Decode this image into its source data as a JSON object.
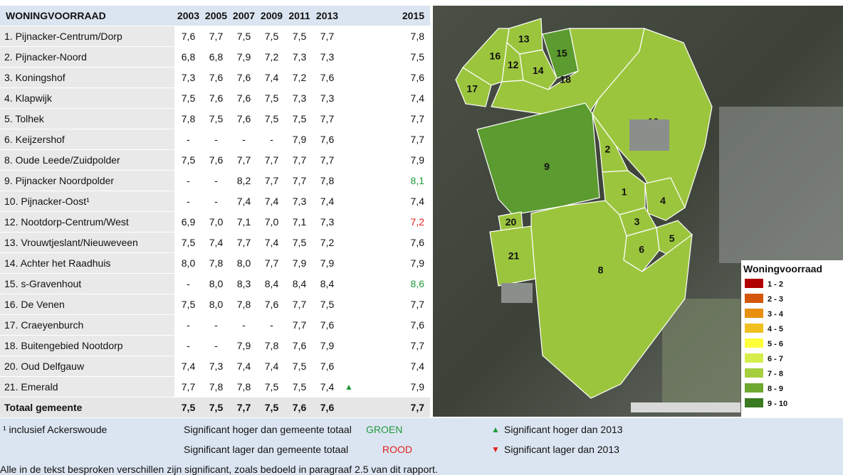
{
  "table": {
    "header": [
      "WONINGVOORRAAD",
      "2003",
      "2005",
      "2007",
      "2009",
      "2011",
      "2013",
      "2015"
    ],
    "rows": [
      {
        "label": "1. Pijnacker-Centrum/Dorp",
        "values": [
          "7,6",
          "7,7",
          "7,5",
          "7,5",
          "7,5",
          "7,7",
          "7,8"
        ]
      },
      {
        "label": "2. Pijnacker-Noord",
        "values": [
          "6,8",
          "6,8",
          "7,9",
          "7,2",
          "7,3",
          "7,3",
          "7,5"
        ]
      },
      {
        "label": "3. Koningshof",
        "values": [
          "7,3",
          "7,6",
          "7,6",
          "7,4",
          "7,2",
          "7,6",
          "7,6"
        ]
      },
      {
        "label": "4. Klapwijk",
        "values": [
          "7,5",
          "7,6",
          "7,6",
          "7,5",
          "7,3",
          "7,3",
          "7,4"
        ]
      },
      {
        "label": "5. Tolhek",
        "values": [
          "7,8",
          "7,5",
          "7,6",
          "7,5",
          "7,5",
          "7,7",
          "7,7"
        ]
      },
      {
        "label": "6. Keijzershof",
        "values": [
          "-",
          "-",
          "-",
          "-",
          "7,9",
          "7,6",
          "7,7"
        ]
      },
      {
        "label": "8. Oude Leede/Zuidpolder",
        "values": [
          "7,5",
          "7,6",
          "7,7",
          "7,7",
          "7,7",
          "7,7",
          "7,9"
        ]
      },
      {
        "label": "9. Pijnacker Noordpolder",
        "values": [
          "-",
          "-",
          "8,2",
          "7,7",
          "7,7",
          "7,8",
          "8,1"
        ],
        "last_color": "#1f9a3a"
      },
      {
        "label": "10. Pijnacker-Oost¹",
        "values": [
          "-",
          "-",
          "7,4",
          "7,4",
          "7,3",
          "7,4",
          "7,4"
        ]
      },
      {
        "label": "12. Nootdorp-Centrum/West",
        "values": [
          "6,9",
          "7,0",
          "7,1",
          "7,0",
          "7,1",
          "7,3",
          "7,2"
        ],
        "last_color": "#e0201c"
      },
      {
        "label": "13. Vrouwtjeslant/Nieuweveen",
        "values": [
          "7,5",
          "7,4",
          "7,7",
          "7,4",
          "7,5",
          "7,2",
          "7,6"
        ]
      },
      {
        "label": "14. Achter het Raadhuis",
        "values": [
          "8,0",
          "7,8",
          "8,0",
          "7,7",
          "7,9",
          "7,9",
          "7,9"
        ]
      },
      {
        "label": "15. s-Gravenhout",
        "values": [
          "-",
          "8,0",
          "8,3",
          "8,4",
          "8,4",
          "8,4",
          "8,6"
        ],
        "last_color": "#1f9a3a"
      },
      {
        "label": "16. De Venen",
        "values": [
          "7,5",
          "8,0",
          "7,8",
          "7,6",
          "7,7",
          "7,5",
          "7,7"
        ]
      },
      {
        "label": "17. Craeyenburch",
        "values": [
          "-",
          "-",
          "-",
          "-",
          "7,7",
          "7,6",
          "7,6"
        ]
      },
      {
        "label": "18. Buitengebied Nootdorp",
        "values": [
          "-",
          "-",
          "7,9",
          "7,8",
          "7,6",
          "7,9",
          "7,7"
        ]
      },
      {
        "label": "20. Oud Delfgauw",
        "values": [
          "7,4",
          "7,3",
          "7,4",
          "7,4",
          "7,5",
          "7,6",
          "7,4"
        ]
      },
      {
        "label": "21. Emerald",
        "values": [
          "7,7",
          "7,8",
          "7,8",
          "7,5",
          "7,5",
          "7,4",
          "7,9"
        ],
        "trend": "up"
      }
    ],
    "total": {
      "label": "Totaal gemeente",
      "values": [
        "7,5",
        "7,5",
        "7,7",
        "7,5",
        "7,6",
        "7,6",
        "7,7"
      ]
    }
  },
  "footer": {
    "footnote": "¹ inclusief Ackerswoude",
    "higher_total": "Significant hoger dan gemeente totaal",
    "higher_word": "GROEN",
    "lower_total": "Significant lager dan gemeente totaal",
    "lower_word": "ROOD",
    "higher_2013": "Significant hoger dan 2013",
    "lower_2013": "Significant lager dan 2013",
    "note": "Alle in de tekst besproken verschillen zijn significant, zoals bedoeld in paragraaf 2.5 van dit rapport."
  },
  "map": {
    "regions": [
      {
        "label": "16",
        "color": "#9cc53e"
      },
      {
        "label": "13",
        "color": "#9cc53e"
      },
      {
        "label": "12",
        "color": "#9cc53e"
      },
      {
        "label": "15",
        "color": "#5b9b2f"
      },
      {
        "label": "14",
        "color": "#9cc53e"
      },
      {
        "label": "17",
        "color": "#9cc53e"
      },
      {
        "label": "18",
        "color": "#9cc53e"
      },
      {
        "label": "10",
        "color": "#9cc53e"
      },
      {
        "label": "9",
        "color": "#5b9b2f"
      },
      {
        "label": "2",
        "color": "#9cc53e"
      },
      {
        "label": "1",
        "color": "#9cc53e"
      },
      {
        "label": "4",
        "color": "#9cc53e"
      },
      {
        "label": "3",
        "color": "#9cc53e"
      },
      {
        "label": "20",
        "color": "#9cc53e"
      },
      {
        "label": "5",
        "color": "#9cc53e"
      },
      {
        "label": "6",
        "color": "#9cc53e"
      },
      {
        "label": "21",
        "color": "#9cc53e"
      },
      {
        "label": "8",
        "color": "#9cc53e"
      }
    ],
    "legend": {
      "title": "Woningvoorraad",
      "items": [
        {
          "label": "1 - 2",
          "color": "#b00000"
        },
        {
          "label": "2 - 3",
          "color": "#d4560a"
        },
        {
          "label": "3 - 4",
          "color": "#e88f10"
        },
        {
          "label": "4 - 5",
          "color": "#f0c020"
        },
        {
          "label": "5 - 6",
          "color": "#ffff3c"
        },
        {
          "label": "6 - 7",
          "color": "#d6ee4c"
        },
        {
          "label": "7 - 8",
          "color": "#a6cf40"
        },
        {
          "label": "8 - 9",
          "color": "#6ea830"
        },
        {
          "label": "9 - 10",
          "color": "#3a7a20"
        }
      ]
    }
  }
}
